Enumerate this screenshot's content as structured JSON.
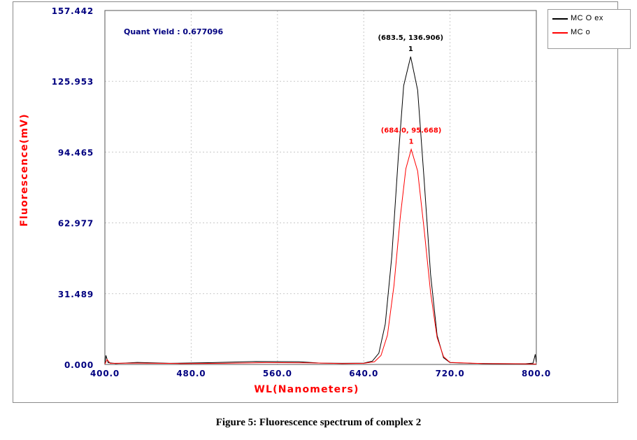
{
  "chart_data": {
    "type": "line",
    "xlabel": "WL(Nanometers)",
    "ylabel": "Fluorescence(mV)",
    "xlim": [
      400.0,
      800.0
    ],
    "ylim": [
      0.0,
      157.442
    ],
    "x_ticks": [
      "400.0",
      "480.0",
      "560.0",
      "640.0",
      "720.0",
      "800.0"
    ],
    "y_ticks": [
      "0.000",
      "31.489",
      "62.977",
      "94.465",
      "125.953",
      "157.442"
    ],
    "grid": true,
    "legend_position": "top-right",
    "annotation": "Quant Yield : 0.677096",
    "series": [
      {
        "name": "MC O ex",
        "color": "#000000",
        "peak_label": "(683.5, 136.906)",
        "points": [
          [
            400,
            0.3
          ],
          [
            401,
            4.0
          ],
          [
            403,
            0.8
          ],
          [
            410,
            0.4
          ],
          [
            430,
            0.9
          ],
          [
            460,
            0.5
          ],
          [
            500,
            0.8
          ],
          [
            540,
            1.3
          ],
          [
            580,
            1.2
          ],
          [
            600,
            0.6
          ],
          [
            620,
            0.5
          ],
          [
            640,
            0.6
          ],
          [
            648,
            1.5
          ],
          [
            654,
            5.0
          ],
          [
            660,
            18.0
          ],
          [
            666,
            48.0
          ],
          [
            672,
            92.0
          ],
          [
            677,
            124.0
          ],
          [
            683.5,
            136.906
          ],
          [
            690,
            122.0
          ],
          [
            696,
            82.0
          ],
          [
            702,
            40.0
          ],
          [
            708,
            13.0
          ],
          [
            714,
            3.0
          ],
          [
            720,
            0.8
          ],
          [
            740,
            0.5
          ],
          [
            760,
            0.4
          ],
          [
            790,
            0.3
          ],
          [
            797,
            0.6
          ],
          [
            799,
            4.5
          ],
          [
            800,
            1.0
          ]
        ]
      },
      {
        "name": "MC o",
        "color": "#ff0000",
        "peak_label": "(684.0, 95.668)",
        "points": [
          [
            400,
            0.2
          ],
          [
            402,
            2.2
          ],
          [
            405,
            0.5
          ],
          [
            430,
            0.6
          ],
          [
            470,
            0.4
          ],
          [
            510,
            0.5
          ],
          [
            550,
            0.8
          ],
          [
            590,
            0.7
          ],
          [
            620,
            0.4
          ],
          [
            640,
            0.5
          ],
          [
            650,
            1.2
          ],
          [
            656,
            4.0
          ],
          [
            662,
            13.0
          ],
          [
            668,
            35.0
          ],
          [
            674,
            66.0
          ],
          [
            679,
            87.0
          ],
          [
            684.0,
            95.668
          ],
          [
            690,
            86.0
          ],
          [
            696,
            60.0
          ],
          [
            702,
            32.0
          ],
          [
            708,
            12.0
          ],
          [
            714,
            3.5
          ],
          [
            720,
            0.9
          ],
          [
            750,
            0.4
          ],
          [
            780,
            0.3
          ],
          [
            800,
            0.2
          ]
        ]
      }
    ]
  },
  "caption": "Figure 5: Fluorescence spectrum of complex 2"
}
